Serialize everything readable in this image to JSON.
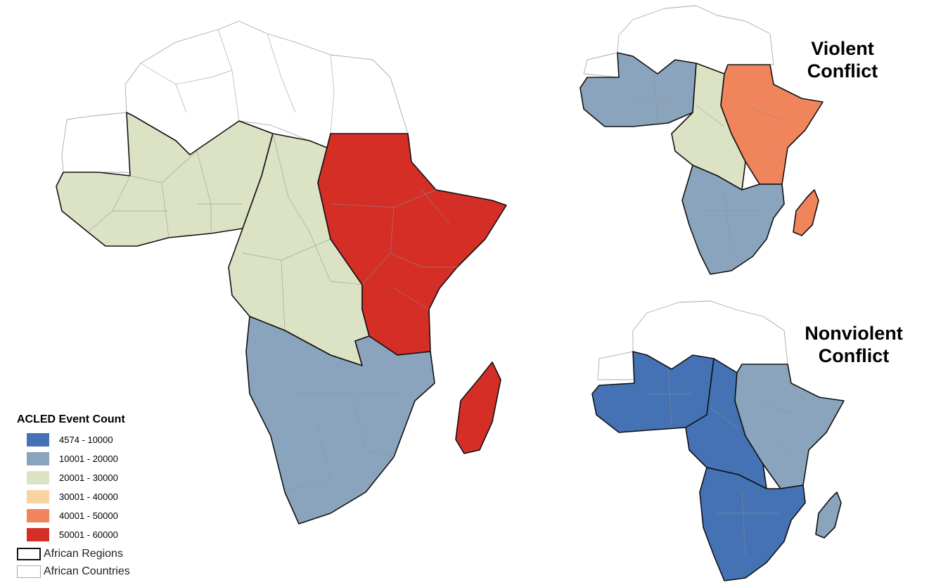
{
  "maps": {
    "violent_title_line1": "Violent",
    "violent_title_line2": "Conflict",
    "nonviolent_title_line1": "Nonviolent",
    "nonviolent_title_line2": "Conflict"
  },
  "legend": {
    "title": "ACLED Event Count",
    "classes": [
      {
        "label": "4574 - 10000",
        "color": "#4472b4"
      },
      {
        "label": "10001 - 20000",
        "color": "#8ba4bd"
      },
      {
        "label": "20001 - 30000",
        "color": "#dce3c5"
      },
      {
        "label": "30001 - 40000",
        "color": "#fbd3a0"
      },
      {
        "label": "40001 - 50000",
        "color": "#f0845a"
      },
      {
        "label": "50001 - 60000",
        "color": "#d42e27"
      }
    ],
    "regions_label": "African Regions",
    "countries_label": "African Countries"
  },
  "region_colors": {
    "main": {
      "west": "#dce3c5",
      "central": "#dce3c5",
      "east": "#d42e27",
      "south": "#8ba4bd"
    },
    "violent": {
      "west": "#8ba4bd",
      "central": "#dce3c5",
      "east": "#f0845a",
      "south": "#8ba4bd"
    },
    "nonviolent": {
      "west": "#4472b4",
      "central": "#4472b4",
      "east": "#8ba4bd",
      "south": "#4472b4"
    }
  }
}
